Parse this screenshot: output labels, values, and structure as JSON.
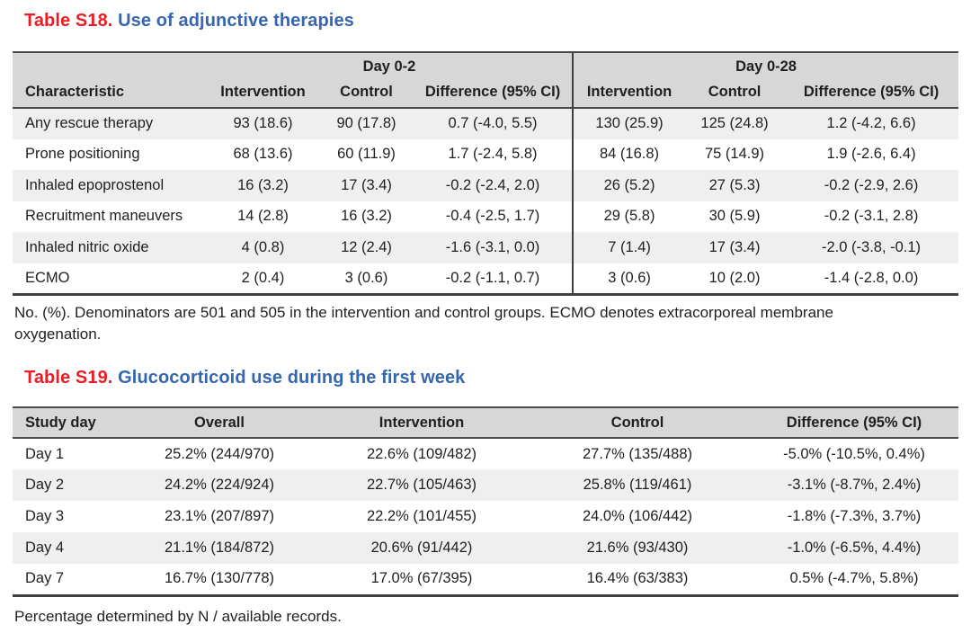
{
  "colors": {
    "label_red": "#ed1c24",
    "title_blue": "#3667ae",
    "header_bg": "#d7d7d7",
    "stripe_bg": "#efefef",
    "rule_dark": "#3f3f3f"
  },
  "table_s18": {
    "label": "Table S18.",
    "title": "Use of adjunctive therapies",
    "group_headers": [
      "Day 0-2",
      "Day 0-28"
    ],
    "columns": [
      "Characteristic",
      "Intervention",
      "Control",
      "Difference (95% CI)",
      "Intervention",
      "Control",
      "Difference (95% CI)"
    ],
    "rows": [
      [
        "Any rescue therapy",
        "93 (18.6)",
        "90 (17.8)",
        "0.7 (-4.0, 5.5)",
        "130 (25.9)",
        "125 (24.8)",
        "1.2 (-4.2, 6.6)"
      ],
      [
        "Prone positioning",
        "68 (13.6)",
        "60 (11.9)",
        "1.7 (-2.4, 5.8)",
        "84 (16.8)",
        "75 (14.9)",
        "1.9 (-2.6, 6.4)"
      ],
      [
        "Inhaled epoprostenol",
        "16 (3.2)",
        "17 (3.4)",
        "-0.2 (-2.4, 2.0)",
        "26 (5.2)",
        "27 (5.3)",
        "-0.2 (-2.9, 2.6)"
      ],
      [
        "Recruitment maneuvers",
        "14 (2.8)",
        "16 (3.2)",
        "-0.4 (-2.5, 1.7)",
        "29 (5.8)",
        "30 (5.9)",
        "-0.2 (-3.1, 2.8)"
      ],
      [
        "Inhaled nitric oxide",
        "4 (0.8)",
        "12 (2.4)",
        "-1.6 (-3.1, 0.0)",
        "7 (1.4)",
        "17 (3.4)",
        "-2.0 (-3.8, -0.1)"
      ],
      [
        "ECMO",
        "2 (0.4)",
        "3 (0.6)",
        "-0.2 (-1.1, 0.7)",
        "3 (0.6)",
        "10 (2.0)",
        "-1.4 (-2.8, 0.0)"
      ]
    ],
    "footnote": "No. (%). Denominators are 501 and 505 in the intervention and control groups. ECMO denotes extracorporeal membrane oxygenation."
  },
  "table_s19": {
    "label": "Table S19.",
    "title": "Glucocorticoid use during the first week",
    "columns": [
      "Study day",
      "Overall",
      "Intervention",
      "Control",
      "Difference (95% CI)"
    ],
    "rows": [
      [
        "Day 1",
        "25.2% (244/970)",
        "22.6% (109/482)",
        "27.7% (135/488)",
        "-5.0% (-10.5%, 0.4%)"
      ],
      [
        "Day 2",
        "24.2% (224/924)",
        "22.7% (105/463)",
        "25.8% (119/461)",
        "-3.1% (-8.7%, 2.4%)"
      ],
      [
        "Day 3",
        "23.1% (207/897)",
        "22.2% (101/455)",
        "24.0% (106/442)",
        "-1.8% (-7.3%, 3.7%)"
      ],
      [
        "Day 4",
        "21.1% (184/872)",
        "20.6% (91/442)",
        "21.6% (93/430)",
        "-1.0% (-6.5%, 4.4%)"
      ],
      [
        "Day 7",
        "16.7% (130/778)",
        "17.0% (67/395)",
        "16.4% (63/383)",
        "0.5% (-4.7%, 5.8%)"
      ]
    ],
    "footnote": "Percentage determined by N / available records."
  }
}
